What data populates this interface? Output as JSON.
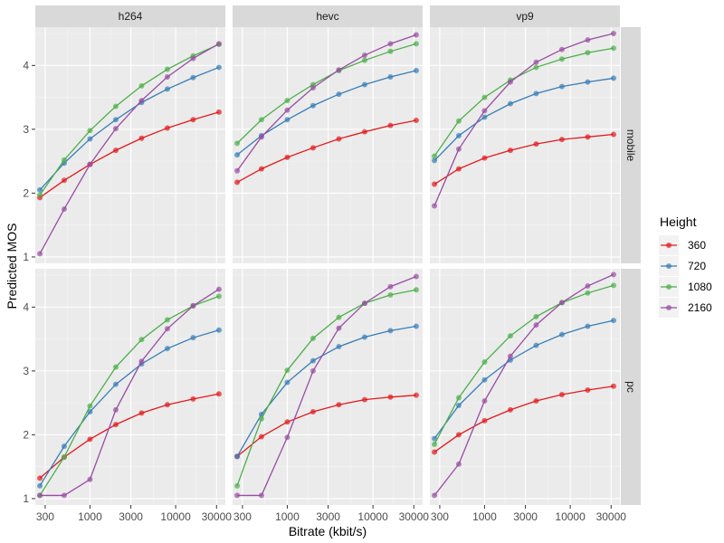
{
  "chart_data": {
    "type": "line",
    "xlabel": "Bitrate (kbit/s)",
    "ylabel": "Predicted MOS",
    "x_scale": "log10",
    "xlim": [
      230,
      38000
    ],
    "ylim": [
      0.9,
      4.6
    ],
    "x_ticks": [
      300,
      1000,
      3000,
      10000,
      30000
    ],
    "x_tick_labels": [
      "300",
      "1000",
      "3000",
      "10000",
      "30000"
    ],
    "y_ticks": [
      1,
      2,
      3,
      4
    ],
    "y_tick_labels": [
      "1",
      "2",
      "3",
      "4"
    ],
    "grid": true,
    "legend": {
      "title": "Height",
      "position": "right",
      "entries": [
        {
          "label": "360",
          "color": "#e41a1c"
        },
        {
          "label": "720",
          "color": "#377eb8"
        },
        {
          "label": "1080",
          "color": "#4daf4a"
        },
        {
          "label": "2160",
          "color": "#984ea3"
        }
      ]
    },
    "col_facets": [
      "h264",
      "hevc",
      "vp9"
    ],
    "row_facets": [
      "mobile",
      "pc"
    ],
    "x": [
      260,
      500,
      1000,
      2000,
      4000,
      8000,
      16000,
      32000
    ],
    "panels": [
      {
        "col": "h264",
        "row": "mobile",
        "series": [
          {
            "height": "360",
            "values": [
              1.93,
              2.2,
              2.45,
              2.67,
              2.86,
              3.02,
              3.15,
              3.27
            ]
          },
          {
            "height": "720",
            "values": [
              2.05,
              2.47,
              2.85,
              3.15,
              3.42,
              3.63,
              3.81,
              3.97
            ]
          },
          {
            "height": "1080",
            "values": [
              1.97,
              2.52,
              2.98,
              3.36,
              3.68,
              3.94,
              4.15,
              4.33
            ]
          },
          {
            "height": "2160",
            "values": [
              1.05,
              1.75,
              2.45,
              3.01,
              3.45,
              3.82,
              4.11,
              4.34
            ]
          }
        ]
      },
      {
        "col": "hevc",
        "row": "mobile",
        "series": [
          {
            "height": "360",
            "values": [
              2.17,
              2.38,
              2.56,
              2.71,
              2.85,
              2.96,
              3.06,
              3.14
            ]
          },
          {
            "height": "720",
            "values": [
              2.6,
              2.9,
              3.15,
              3.37,
              3.55,
              3.7,
              3.82,
              3.92
            ]
          },
          {
            "height": "1080",
            "values": [
              2.78,
              3.15,
              3.45,
              3.7,
              3.92,
              4.08,
              4.22,
              4.34
            ]
          },
          {
            "height": "2160",
            "values": [
              2.35,
              2.88,
              3.3,
              3.65,
              3.93,
              4.16,
              4.34,
              4.48
            ]
          }
        ]
      },
      {
        "col": "vp9",
        "row": "mobile",
        "series": [
          {
            "height": "360",
            "values": [
              2.14,
              2.38,
              2.55,
              2.67,
              2.77,
              2.84,
              2.88,
              2.92
            ]
          },
          {
            "height": "720",
            "values": [
              2.51,
              2.9,
              3.19,
              3.4,
              3.56,
              3.67,
              3.74,
              3.8
            ]
          },
          {
            "height": "1080",
            "values": [
              2.58,
              3.13,
              3.5,
              3.77,
              3.97,
              4.1,
              4.2,
              4.27
            ]
          },
          {
            "height": "2160",
            "values": [
              1.8,
              2.69,
              3.29,
              3.74,
              4.05,
              4.25,
              4.4,
              4.5
            ]
          }
        ]
      },
      {
        "col": "h264",
        "row": "pc",
        "series": [
          {
            "height": "360",
            "values": [
              1.32,
              1.65,
              1.93,
              2.16,
              2.34,
              2.47,
              2.56,
              2.64
            ]
          },
          {
            "height": "720",
            "values": [
              1.2,
              1.82,
              2.36,
              2.79,
              3.11,
              3.35,
              3.52,
              3.64
            ]
          },
          {
            "height": "1080",
            "values": [
              1.05,
              1.65,
              2.45,
              3.06,
              3.49,
              3.8,
              4.02,
              4.17
            ]
          },
          {
            "height": "2160",
            "values": [
              1.05,
              1.05,
              1.3,
              2.39,
              3.15,
              3.66,
              4.02,
              4.28
            ]
          }
        ]
      },
      {
        "col": "hevc",
        "row": "pc",
        "series": [
          {
            "height": "360",
            "values": [
              1.66,
              1.97,
              2.2,
              2.36,
              2.47,
              2.55,
              2.59,
              2.62
            ]
          },
          {
            "height": "720",
            "values": [
              1.66,
              2.32,
              2.82,
              3.16,
              3.38,
              3.53,
              3.63,
              3.7
            ]
          },
          {
            "height": "1080",
            "values": [
              1.2,
              2.25,
              3.01,
              3.51,
              3.84,
              4.06,
              4.19,
              4.27
            ]
          },
          {
            "height": "2160",
            "values": [
              1.05,
              1.05,
              1.96,
              3.0,
              3.67,
              4.06,
              4.32,
              4.48
            ]
          }
        ]
      },
      {
        "col": "vp9",
        "row": "pc",
        "series": [
          {
            "height": "360",
            "values": [
              1.73,
              2.0,
              2.22,
              2.39,
              2.53,
              2.63,
              2.7,
              2.76
            ]
          },
          {
            "height": "720",
            "values": [
              1.94,
              2.46,
              2.86,
              3.17,
              3.4,
              3.57,
              3.7,
              3.79
            ]
          },
          {
            "height": "1080",
            "values": [
              1.85,
              2.58,
              3.14,
              3.55,
              3.85,
              4.07,
              4.22,
              4.34
            ]
          },
          {
            "height": "2160",
            "values": [
              1.05,
              1.54,
              2.53,
              3.23,
              3.72,
              4.07,
              4.33,
              4.51
            ]
          }
        ]
      }
    ]
  }
}
